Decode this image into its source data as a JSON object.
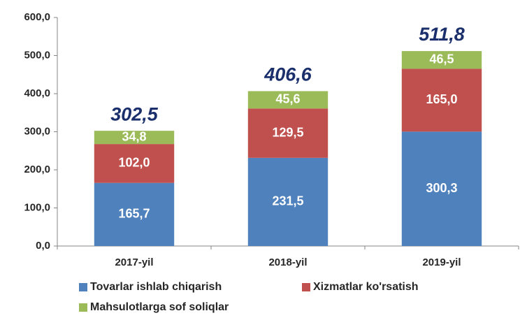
{
  "chart_data": {
    "type": "stacked_bar",
    "categories": [
      "2017-yil",
      "2018-yil",
      "2019-yil"
    ],
    "series": [
      {
        "name": "Tovarlar ishlab chiqarish",
        "color": "#4f81bd",
        "values": [
          165.7,
          231.5,
          300.3
        ],
        "value_labels": [
          "165,7",
          "231,5",
          "300,3"
        ]
      },
      {
        "name": "Xizmatlar ko'rsatish",
        "color": "#c0504d",
        "values": [
          102.0,
          129.5,
          165.0
        ],
        "value_labels": [
          "102,0",
          "129,5",
          "165,0"
        ]
      },
      {
        "name": "Mahsulotlarga sof soliqlar",
        "color": "#9bbb59",
        "values": [
          34.8,
          45.6,
          46.5
        ],
        "value_labels": [
          "34,8",
          "45,6",
          "46,5"
        ]
      }
    ],
    "totals": [
      302.5,
      406.6,
      511.8
    ],
    "total_labels": [
      "302,5",
      "406,6",
      "511,8"
    ],
    "ylim": [
      0,
      600
    ],
    "yticks": [
      {
        "value": 0,
        "label": "0,0"
      },
      {
        "value": 100,
        "label": "100,0"
      },
      {
        "value": 200,
        "label": "200,0"
      },
      {
        "value": 300,
        "label": "300,0"
      },
      {
        "value": 400,
        "label": "400,0"
      },
      {
        "value": 500,
        "label": "500,0"
      },
      {
        "value": 600,
        "label": "600,0"
      }
    ],
    "legend": "bottom"
  }
}
